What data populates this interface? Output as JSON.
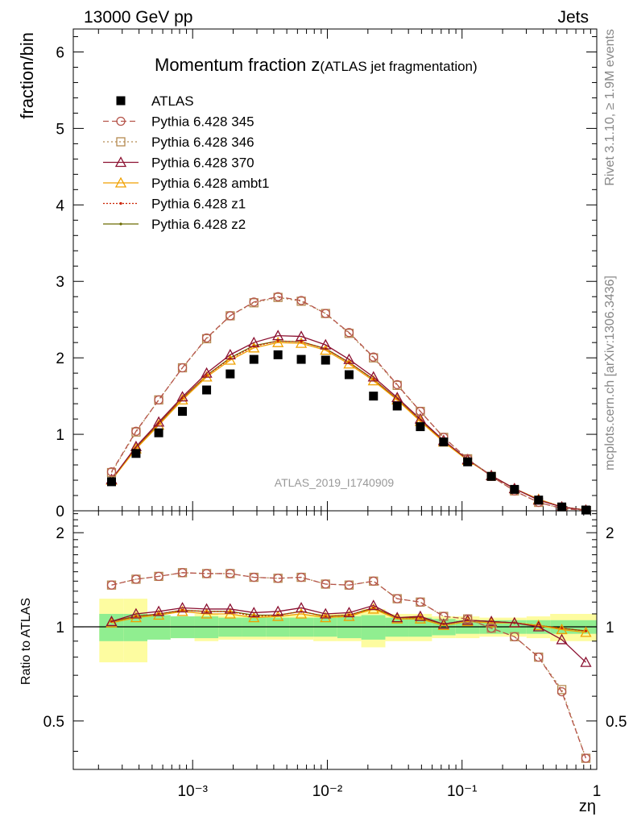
{
  "header": {
    "left": "13000 GeV pp",
    "right": "Jets"
  },
  "side_labels": {
    "top": "Rivet 3.1.10, ≥ 1.9M events",
    "bottom": "mcplots.cern.ch [arXiv:1306.3436]"
  },
  "chart_data": {
    "type": "line",
    "title": "Momentum fraction z",
    "title_suffix": "(ATLAS jet fragmentation)",
    "ylabel": "fraction/bin",
    "ratio_ylabel": "Ratio to ATLAS",
    "xlabel": "zη",
    "watermark": "ATLAS_2019_I1740909",
    "xscale": "log",
    "xlim": [
      0.00013,
      1.0
    ],
    "ylim": [
      0,
      6.3
    ],
    "ratio_ylim": [
      0.35,
      2.35
    ],
    "x_tick_labels": [
      "10⁻³",
      "10⁻²",
      "10⁻¹",
      "1"
    ],
    "y_tick_labels": [
      "0",
      "1",
      "2",
      "3",
      "4",
      "5",
      "6"
    ],
    "ratio_tick_labels": [
      "0.5",
      "1",
      "2"
    ],
    "x": [
      0.00025,
      0.00038,
      0.00056,
      0.00084,
      0.00127,
      0.0019,
      0.00285,
      0.0043,
      0.0064,
      0.0097,
      0.0145,
      0.022,
      0.033,
      0.049,
      0.073,
      0.11,
      0.165,
      0.245,
      0.37,
      0.55,
      0.83
    ],
    "data": {
      "name": "ATLAS",
      "values": [
        0.38,
        0.75,
        1.02,
        1.3,
        1.58,
        1.79,
        1.98,
        2.04,
        1.98,
        1.97,
        1.78,
        1.5,
        1.37,
        1.1,
        0.9,
        0.64,
        0.45,
        0.28,
        0.14,
        0.05,
        0.01
      ],
      "band_inner": [
        0.1,
        0.1,
        0.09,
        0.08,
        0.08,
        0.07,
        0.07,
        0.07,
        0.07,
        0.07,
        0.08,
        0.09,
        0.07,
        0.07,
        0.06,
        0.05,
        0.05,
        0.05,
        0.05,
        0.05,
        0.05
      ],
      "band_outer": [
        0.23,
        0.23,
        0.08,
        0.08,
        0.1,
        0.09,
        0.09,
        0.09,
        0.09,
        0.1,
        0.1,
        0.14,
        0.1,
        0.1,
        0.08,
        0.08,
        0.07,
        0.07,
        0.08,
        0.1,
        0.1
      ]
    },
    "series": [
      {
        "name": "Pythia 6.428 345",
        "color": "#b5544a",
        "dash": "7,4",
        "marker": "circle",
        "values": [
          0.51,
          1.04,
          1.45,
          1.87,
          2.26,
          2.55,
          2.73,
          2.8,
          2.75,
          2.58,
          2.33,
          2.01,
          1.65,
          1.3,
          0.96,
          0.68,
          0.45,
          0.26,
          0.11,
          0.03,
          0.004
        ],
        "ratio": [
          1.36,
          1.42,
          1.45,
          1.49,
          1.48,
          1.48,
          1.44,
          1.43,
          1.44,
          1.37,
          1.36,
          1.4,
          1.23,
          1.2,
          1.08,
          1.06,
          0.99,
          0.93,
          0.8,
          0.62,
          0.38
        ]
      },
      {
        "name": "Pythia 6.428 346",
        "color": "#b58a50",
        "dash": "2,3",
        "marker": "square",
        "values": [
          0.5,
          1.03,
          1.45,
          1.87,
          2.25,
          2.55,
          2.72,
          2.79,
          2.74,
          2.58,
          2.32,
          2.0,
          1.64,
          1.3,
          0.96,
          0.68,
          0.45,
          0.26,
          0.11,
          0.03,
          0.004
        ],
        "ratio": [
          1.36,
          1.42,
          1.45,
          1.49,
          1.48,
          1.48,
          1.44,
          1.43,
          1.44,
          1.37,
          1.36,
          1.4,
          1.23,
          1.2,
          1.08,
          1.06,
          0.99,
          0.93,
          0.8,
          0.63,
          0.38
        ]
      },
      {
        "name": "Pythia 6.428 370",
        "color": "#8b1030",
        "dash": "",
        "marker": "triangle",
        "values": [
          0.41,
          0.84,
          1.16,
          1.49,
          1.8,
          2.04,
          2.2,
          2.29,
          2.28,
          2.17,
          1.98,
          1.75,
          1.48,
          1.2,
          0.92,
          0.67,
          0.46,
          0.29,
          0.14,
          0.05,
          0.008
        ],
        "ratio": [
          1.04,
          1.1,
          1.12,
          1.15,
          1.14,
          1.14,
          1.11,
          1.12,
          1.15,
          1.1,
          1.11,
          1.17,
          1.07,
          1.08,
          1.02,
          1.05,
          1.04,
          1.03,
          1.0,
          0.91,
          0.77
        ]
      },
      {
        "name": "Pythia 6.428 ambt1",
        "color": "#f0a000",
        "dash": "",
        "marker": "triangle",
        "values": [
          0.4,
          0.81,
          1.12,
          1.45,
          1.75,
          1.97,
          2.13,
          2.2,
          2.19,
          2.1,
          1.92,
          1.7,
          1.45,
          1.17,
          0.9,
          0.66,
          0.46,
          0.29,
          0.15,
          0.05,
          0.01
        ],
        "ratio": [
          1.03,
          1.07,
          1.09,
          1.12,
          1.1,
          1.1,
          1.07,
          1.08,
          1.1,
          1.07,
          1.08,
          1.14,
          1.06,
          1.06,
          1.01,
          1.04,
          1.03,
          1.03,
          1.01,
          0.98,
          0.96
        ]
      },
      {
        "name": "Pythia 6.428 z1",
        "color": "#cc2200",
        "dash": "2,2",
        "marker": "dot",
        "values": [
          0.41,
          0.82,
          1.14,
          1.47,
          1.77,
          1.99,
          2.15,
          2.22,
          2.21,
          2.12,
          1.94,
          1.72,
          1.46,
          1.18,
          0.91,
          0.67,
          0.46,
          0.29,
          0.15,
          0.05,
          0.01
        ],
        "ratio": [
          1.04,
          1.08,
          1.1,
          1.13,
          1.12,
          1.12,
          1.08,
          1.09,
          1.12,
          1.08,
          1.09,
          1.15,
          1.07,
          1.07,
          1.02,
          1.05,
          1.04,
          1.03,
          1.01,
          0.99,
          0.97
        ]
      },
      {
        "name": "Pythia 6.428 z2",
        "color": "#6b6b00",
        "dash": "",
        "marker": "dot",
        "values": [
          0.41,
          0.82,
          1.14,
          1.47,
          1.77,
          2.0,
          2.16,
          2.22,
          2.21,
          2.12,
          1.94,
          1.72,
          1.46,
          1.18,
          0.91,
          0.67,
          0.46,
          0.29,
          0.15,
          0.05,
          0.01
        ],
        "ratio": [
          1.04,
          1.08,
          1.1,
          1.13,
          1.12,
          1.12,
          1.09,
          1.09,
          1.12,
          1.08,
          1.09,
          1.15,
          1.07,
          1.07,
          1.02,
          1.05,
          1.04,
          1.03,
          1.01,
          0.99,
          0.97
        ]
      }
    ]
  }
}
